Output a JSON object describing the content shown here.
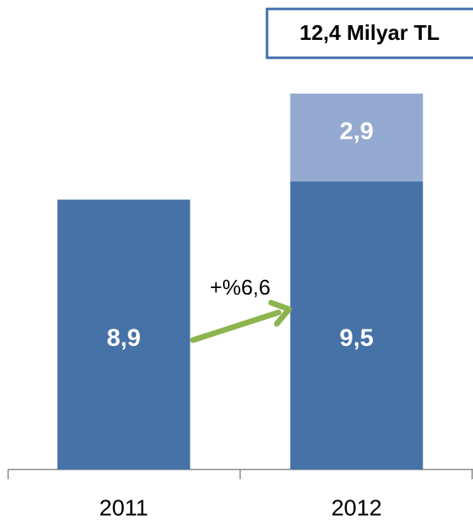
{
  "chart_data": {
    "type": "stacked_bar",
    "categories": [
      "2011",
      "2012"
    ],
    "series": [
      {
        "color": "#4672a8",
        "values": [
          8.9,
          9.5
        ],
        "value_labels": [
          "8,9",
          "9,5"
        ]
      },
      {
        "color": "#95aad1",
        "values": [
          null,
          2.9
        ],
        "value_labels": [
          null,
          "2,9"
        ]
      }
    ],
    "annotations": [
      "+%6,6",
      "12,4 Milyar TL"
    ]
  }
}
